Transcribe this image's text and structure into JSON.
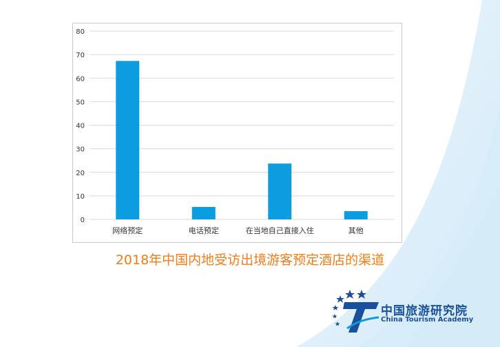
{
  "caption": "2018年中国内地受访出境游客预定酒店的渠道",
  "colors": {
    "bar": "#0b9de0",
    "caption": "#f07d17",
    "brand": "#1a4f9c",
    "grid": "#d9d9d9"
  },
  "logo": {
    "name_cn": "中国旅游研究院",
    "name_en": "China Tourism Academy",
    "icon": "tourism-academy-star-t-logo"
  },
  "chart_data": {
    "type": "bar",
    "categories": [
      "网络预定",
      "电话预定",
      "在当地自己直接入住",
      "其他"
    ],
    "values": [
      67.3,
      5.3,
      23.7,
      3.5
    ],
    "ylim": [
      0,
      80
    ],
    "yticks": [
      0,
      10,
      20,
      30,
      40,
      50,
      60,
      70,
      80
    ],
    "grid": true,
    "legend": "none"
  }
}
